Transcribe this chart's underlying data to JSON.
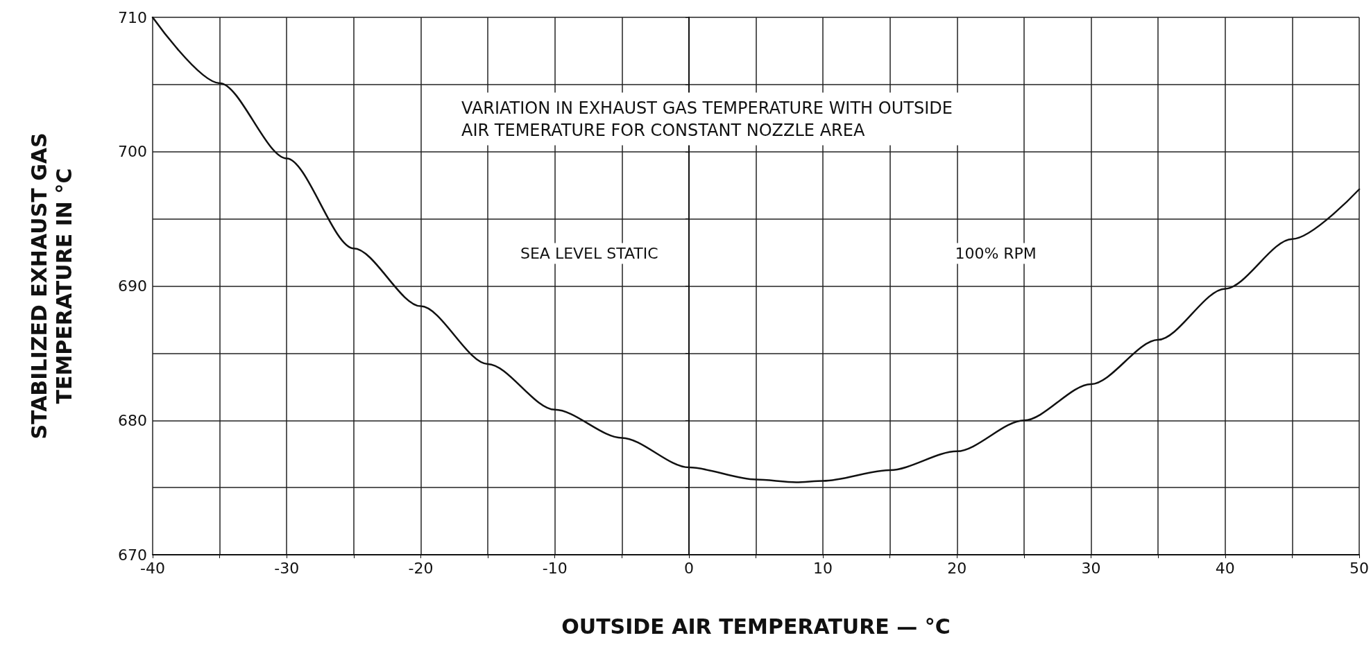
{
  "chart_data": {
    "type": "line",
    "title": "VARIATION IN EXHAUST GAS TEMPERATURE WITH OUTSIDE\nAIR TEMERATURE FOR CONSTANT NOZZLE AREA",
    "xlabel": "OUTSIDE AIR TEMPERATURE — °C",
    "ylabel": "STABILIZED EXHAUST GAS\nTEMPERATURE IN °C",
    "annotations": [
      "SEA LEVEL STATIC",
      "100% RPM"
    ],
    "x": [
      -40,
      -35,
      -30,
      -25,
      -20,
      -15,
      -10,
      -5,
      0,
      5,
      8,
      10,
      15,
      20,
      25,
      30,
      35,
      40,
      45,
      50
    ],
    "series": [
      {
        "color": "#111111",
        "values": [
          710,
          705.1,
          699.5,
          692.8,
          688.5,
          684.2,
          680.8,
          678.7,
          676.5,
          675.6,
          675.4,
          675.5,
          676.3,
          677.7,
          680,
          682.7,
          686,
          689.8,
          693.5,
          697.2
        ]
      }
    ],
    "xlim": [
      -40,
      50
    ],
    "xticks": [
      -40,
      {
        "value": -35,
        "label": null
      },
      -30,
      {
        "value": -25,
        "label": null
      },
      -20,
      {
        "value": -15,
        "label": null
      },
      -10,
      {
        "value": -5,
        "label": null
      },
      0,
      {
        "value": 5,
        "label": null
      },
      10,
      {
        "value": 15,
        "label": null
      },
      20,
      {
        "value": 25,
        "label": null
      },
      30,
      {
        "value": 35,
        "label": null
      },
      40,
      {
        "value": 45,
        "label": null
      },
      50
    ],
    "ylim": [
      670,
      710
    ],
    "yticks": [
      670,
      {
        "value": 675,
        "label": null
      },
      680,
      {
        "value": 685,
        "label": null
      },
      690,
      {
        "value": 695,
        "label": null
      },
      700,
      {
        "value": 705,
        "label": null
      },
      710
    ],
    "grid": true,
    "marker": "none",
    "line_style": "solid"
  }
}
